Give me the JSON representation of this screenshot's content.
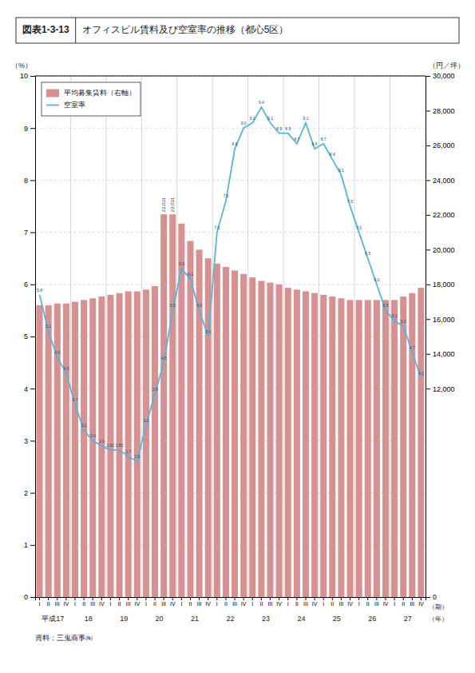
{
  "chart_data": {
    "type": "bar",
    "title": "オフィスビル賃料及び空室率の推移（都心5区）",
    "figure_label": "図表1-3-13",
    "source": "資料：三鬼商事㈱",
    "categories": [
      "I",
      "II",
      "III",
      "IV",
      "I",
      "II",
      "III",
      "IV",
      "I",
      "II",
      "III",
      "IV",
      "I",
      "II",
      "III",
      "IV",
      "I",
      "II",
      "III",
      "IV",
      "I",
      "II",
      "III",
      "IV",
      "I",
      "II",
      "III",
      "IV",
      "I",
      "II",
      "III",
      "IV",
      "I",
      "II",
      "III",
      "IV",
      "I",
      "II",
      "III",
      "IV",
      "I",
      "II",
      "III",
      "IV"
    ],
    "x_group_labels": [
      "平成17",
      "18",
      "19",
      "20",
      "21",
      "22",
      "23",
      "24",
      "25",
      "26",
      "27"
    ],
    "xlabel": "（期）",
    "x_group_label": "（年）",
    "ylabel": "（%）",
    "y2label": "（円／坪）",
    "ylim": [
      0,
      10
    ],
    "yticks": [
      0,
      1,
      2,
      3,
      4,
      5,
      6,
      7,
      8,
      9,
      10
    ],
    "y2lim": [
      0,
      30000
    ],
    "y2ticks": [
      0,
      {
        "value": 12000,
        "label": "12,000"
      },
      {
        "value": 14000,
        "label": "14,000"
      },
      {
        "value": 16000,
        "label": "16,000"
      },
      {
        "value": 18000,
        "label": "18,000"
      },
      {
        "value": 20000,
        "label": "20,000"
      },
      {
        "value": 22000,
        "label": "22,000"
      },
      {
        "value": 24000,
        "label": "24,000"
      },
      {
        "value": 26000,
        "label": "26,000"
      },
      {
        "value": 28000,
        "label": "28,000"
      },
      {
        "value": 30000,
        "label": "30,000"
      }
    ],
    "grid": true,
    "legend": "upper left",
    "data_labels": true,
    "series": [
      {
        "name": "平均募集賃料（右軸）",
        "type": "bar",
        "axis": "y2",
        "color": "#d89090",
        "values": [
          16800,
          16800,
          16900,
          16900,
          17000,
          17100,
          17200,
          17300,
          17400,
          17500,
          17600,
          17600,
          17700,
          17900,
          22031,
          22031,
          21500,
          20500,
          20000,
          19500,
          19200,
          19000,
          18800,
          18600,
          18400,
          18200,
          18100,
          18000,
          17800,
          17700,
          17600,
          17500,
          17400,
          17300,
          17200,
          17100,
          17100,
          17100,
          17100,
          17100,
          17100,
          17300,
          17500,
          17800
        ],
        "value_labels": [
          null,
          null,
          null,
          null,
          null,
          null,
          null,
          null,
          null,
          null,
          null,
          null,
          null,
          null,
          "22,031",
          "22,031",
          null,
          null,
          null,
          null,
          null,
          null,
          null,
          null,
          null,
          null,
          null,
          null,
          null,
          null,
          null,
          null,
          null,
          null,
          null,
          null,
          null,
          null,
          null,
          null,
          null,
          null,
          null,
          null
        ]
      },
      {
        "name": "空室率",
        "type": "line",
        "color": "#50b8d8",
        "values": [
          5.8,
          5.1,
          4.6,
          4.3,
          3.7,
          3.2,
          3.0,
          2.9,
          2.82,
          2.82,
          2.7,
          2.6,
          3.3,
          3.9,
          4.5,
          5.5,
          6.3,
          6.1,
          5.5,
          5.0,
          7.0,
          7.6,
          8.6,
          9.0,
          9.1,
          9.4,
          9.1,
          8.9,
          8.9,
          8.7,
          9.1,
          8.6,
          8.7,
          8.4,
          8.1,
          7.5,
          7.0,
          6.5,
          6.0,
          5.5,
          5.3,
          5.2,
          4.7,
          4.2
        ],
        "value_labels": [
          "5.8",
          "5.1",
          "4.6",
          "4.3",
          "3.7",
          "3.2",
          "3.0",
          "2.9",
          "2.82",
          "2.82",
          "2.7",
          "2.6",
          "3.3",
          "3.9",
          "4.5",
          "5.5",
          "6.3",
          "6.1",
          "5.5",
          "5.0",
          "7.0",
          "7.6",
          "8.6",
          "9.0",
          "9.1",
          "9.4",
          "9.1",
          "8.9",
          "8.9",
          "8.7",
          "9.1",
          "8.6",
          "8.7",
          "8.4",
          "8.1",
          "7.5",
          "7.0",
          "6.5",
          "6.0",
          "5.5",
          "5.3",
          "5.2",
          "4.7",
          "4.2"
        ]
      }
    ]
  }
}
